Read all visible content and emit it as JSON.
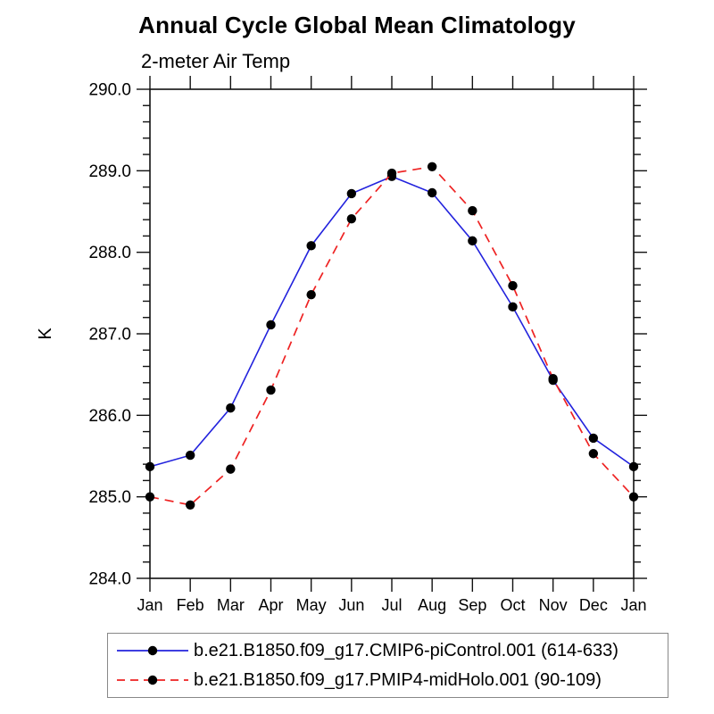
{
  "page": {
    "title": "Annual Cycle Global Mean Climatology",
    "subtitle": "2-meter Air Temp"
  },
  "chart_data": {
    "type": "line",
    "title": "Annual Cycle Global Mean Climatology",
    "subtitle": "2-meter Air Temp",
    "xlabel": "",
    "ylabel": "K",
    "ylim": [
      284.0,
      290.0
    ],
    "ytick_step": 1.0,
    "yminor_step": 0.2,
    "ytick_labels": [
      "284.0",
      "285.0",
      "286.0",
      "287.0",
      "288.0",
      "289.0",
      "290.0"
    ],
    "grid": false,
    "legend_position": "bottom",
    "frame_color": "#111111",
    "tick_color": "#111111",
    "text_color": "#000000",
    "categories": [
      "Jan",
      "Feb",
      "Mar",
      "Apr",
      "May",
      "Jun",
      "Jul",
      "Aug",
      "Sep",
      "Oct",
      "Nov",
      "Dec",
      "Jan"
    ],
    "series": [
      {
        "name": "b.e21.B1850.f09_g17.CMIP6-piControl.001 (614-633)",
        "color": "#2222dd",
        "line_style": "solid",
        "marker": "filled-circle",
        "marker_color": "#000000",
        "values": [
          285.37,
          285.51,
          286.09,
          287.11,
          288.08,
          288.72,
          288.93,
          288.73,
          288.14,
          287.33,
          286.43,
          285.72,
          285.37
        ]
      },
      {
        "name": "b.e21.B1850.f09_g17.PMIP4-midHolo.001 (90-109)",
        "color": "#ee2222",
        "line_style": "dashed",
        "marker": "filled-circle",
        "marker_color": "#000000",
        "values": [
          285.0,
          284.9,
          285.34,
          286.31,
          287.48,
          288.41,
          288.97,
          289.05,
          288.51,
          287.59,
          286.45,
          285.53,
          285.0
        ]
      }
    ]
  }
}
